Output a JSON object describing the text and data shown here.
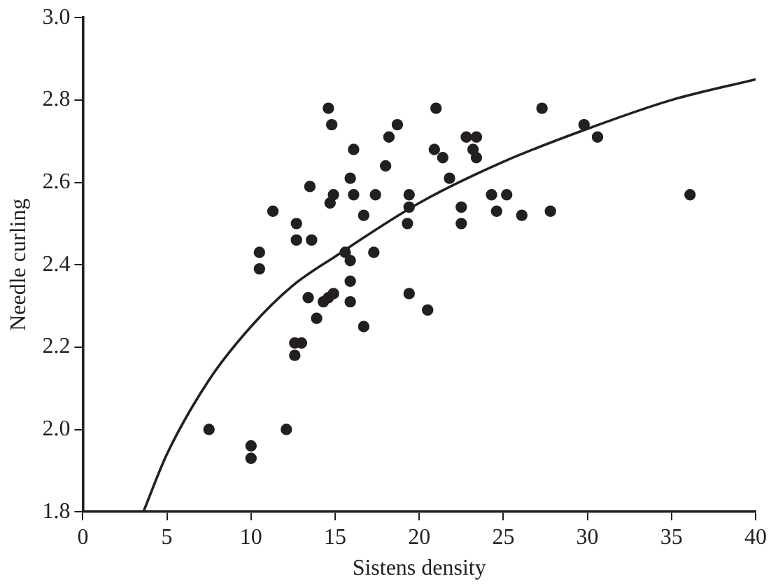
{
  "chart_data": {
    "type": "scatter",
    "xlabel": "Sistens density",
    "ylabel": "Needle curling",
    "xlim": [
      0,
      40
    ],
    "ylim": [
      1.8,
      3.0
    ],
    "xticks": [
      0,
      5,
      10,
      15,
      20,
      25,
      30,
      35,
      40
    ],
    "yticks": [
      {
        "value": 1.8,
        "label": "1.8"
      },
      {
        "value": 2.0,
        "label": "2.0"
      },
      {
        "value": 2.2,
        "label": "2.2"
      },
      {
        "value": 2.4,
        "label": "2.4"
      },
      {
        "value": 2.6,
        "label": "2.6"
      },
      {
        "value": 2.8,
        "label": "2.8"
      },
      {
        "value": 3.0,
        "label": "3.0"
      }
    ],
    "grid": false,
    "legend": false,
    "marker": "circle",
    "series": [
      {
        "color": "#231f20",
        "x": [
          7.5,
          10.0,
          10.0,
          12.1,
          10.5,
          10.5,
          11.3,
          12.7,
          12.7,
          13.6,
          16.7,
          19.4,
          19.3,
          15.6,
          15.9,
          17.3,
          15.9,
          13.4,
          14.3,
          14.6,
          14.9,
          15.9,
          13.9,
          16.7,
          19.4,
          20.5,
          12.6,
          13.0,
          12.6,
          14.6,
          14.8,
          16.1,
          18.7,
          18.2,
          18.0,
          15.9,
          13.5,
          14.9,
          14.7,
          16.1,
          17.4,
          19.4,
          21.0,
          27.3,
          22.8,
          23.4,
          29.8,
          30.6,
          20.9,
          21.4,
          23.2,
          23.4,
          21.8,
          22.5,
          22.5,
          24.3,
          25.2,
          24.6,
          26.1,
          27.8,
          36.1
        ],
        "values": [
          2.0,
          1.96,
          1.93,
          2.0,
          2.43,
          2.39,
          2.53,
          2.5,
          2.46,
          2.46,
          2.52,
          2.54,
          2.5,
          2.43,
          2.41,
          2.43,
          2.36,
          2.32,
          2.31,
          2.32,
          2.33,
          2.31,
          2.27,
          2.25,
          2.33,
          2.29,
          2.21,
          2.21,
          2.18,
          2.78,
          2.74,
          2.68,
          2.74,
          2.71,
          2.64,
          2.61,
          2.59,
          2.57,
          2.55,
          2.57,
          2.57,
          2.57,
          2.78,
          2.78,
          2.71,
          2.71,
          2.74,
          2.71,
          2.68,
          2.66,
          2.68,
          2.66,
          2.61,
          2.54,
          2.5,
          2.57,
          2.57,
          2.53,
          2.52,
          2.53,
          2.57
        ]
      },
      {
        "type": "line",
        "color": "#231f20",
        "marker": "none",
        "line_style": "solid",
        "x": [
          3.6,
          5,
          7.5,
          10,
          12.5,
          15,
          20,
          25,
          30,
          35,
          40
        ],
        "values": [
          1.8,
          1.94,
          2.12,
          2.25,
          2.35,
          2.42,
          2.55,
          2.65,
          2.73,
          2.8,
          2.85
        ]
      }
    ]
  }
}
